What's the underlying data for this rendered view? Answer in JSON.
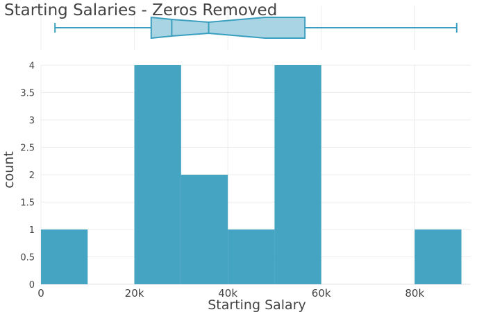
{
  "chart_data": {
    "type": "bar",
    "title": "Starting Salaries - Zeros Removed",
    "xlabel": "Starting Salary",
    "ylabel": "count",
    "xlim": [
      0,
      92000
    ],
    "ylim": [
      0,
      4
    ],
    "grid": true,
    "bar_color": "#3a9fbf",
    "xticks": [
      {
        "value": 0,
        "label": "0"
      },
      {
        "value": 20000,
        "label": "20k"
      },
      {
        "value": 40000,
        "label": "40k"
      },
      {
        "value": 60000,
        "label": "60k"
      },
      {
        "value": 80000,
        "label": "80k"
      }
    ],
    "yticks": [
      {
        "value": 0,
        "label": "0"
      },
      {
        "value": 0.5,
        "label": "0.5"
      },
      {
        "value": 1,
        "label": "1"
      },
      {
        "value": 1.5,
        "label": "1.5"
      },
      {
        "value": 2,
        "label": "2"
      },
      {
        "value": 2.5,
        "label": "2.5"
      },
      {
        "value": 3,
        "label": "3"
      },
      {
        "value": 3.5,
        "label": "3.5"
      },
      {
        "value": 4,
        "label": "4"
      }
    ],
    "bins": [
      {
        "x0": 0,
        "x1": 10000,
        "count": 1
      },
      {
        "x0": 10000,
        "x1": 20000,
        "count": 0
      },
      {
        "x0": 20000,
        "x1": 30000,
        "count": 4
      },
      {
        "x0": 30000,
        "x1": 40000,
        "count": 2
      },
      {
        "x0": 40000,
        "x1": 50000,
        "count": 1
      },
      {
        "x0": 50000,
        "x1": 60000,
        "count": 4
      },
      {
        "x0": 60000,
        "x1": 70000,
        "count": 0
      },
      {
        "x0": 70000,
        "x1": 80000,
        "count": 0
      },
      {
        "x0": 80000,
        "x1": 90000,
        "count": 1
      }
    ],
    "boxplot": {
      "min": 3000,
      "q1": 28000,
      "median": 35900,
      "q3": 56500,
      "max": 89000,
      "notch_low": 23600,
      "notch_high": 48000,
      "fill_color": "#a8d4e3",
      "line_color": "#3a9fbf"
    }
  }
}
